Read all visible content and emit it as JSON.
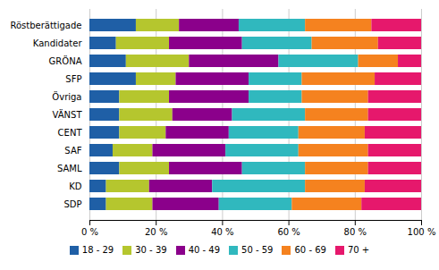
{
  "chart_data": {
    "type": "bar",
    "orientation": "horizontal",
    "stacked": true,
    "categories": [
      "Röstberättigade",
      "Kandidater",
      "GRÖNA",
      "SFP",
      "Övriga",
      "VÄNST",
      "CENT",
      "SAF",
      "SAML",
      "KD",
      "SDP"
    ],
    "series": [
      {
        "name": "18 - 29",
        "color": "#1f5fa6",
        "values": [
          14,
          8,
          11,
          14,
          9,
          9,
          9,
          7,
          9,
          5,
          5
        ]
      },
      {
        "name": "30 - 39",
        "color": "#b5c62e",
        "values": [
          13,
          16,
          19,
          12,
          15,
          16,
          14,
          12,
          15,
          13,
          14
        ]
      },
      {
        "name": "40 - 49",
        "color": "#8B008B",
        "values": [
          18,
          22,
          27,
          22,
          24,
          18,
          19,
          22,
          22,
          19,
          20
        ]
      },
      {
        "name": "50 - 59",
        "color": "#30b8be",
        "values": [
          20,
          21,
          24,
          16,
          16,
          22,
          21,
          22,
          19,
          28,
          22
        ]
      },
      {
        "name": "60 - 69",
        "color": "#f5821f",
        "values": [
          20,
          20,
          12,
          22,
          20,
          19,
          20,
          21,
          19,
          18,
          21
        ]
      },
      {
        "name": "70 +",
        "color": "#e6186c",
        "values": [
          15,
          13,
          7,
          14,
          16,
          16,
          17,
          16,
          16,
          17,
          18
        ]
      }
    ],
    "xlim": [
      0,
      100
    ],
    "xticks": [
      {
        "value": 0,
        "label": "0 %"
      },
      {
        "value": 20,
        "label": "20 %"
      },
      {
        "value": 40,
        "label": "40 %"
      },
      {
        "value": 60,
        "label": "60 %"
      },
      {
        "value": 80,
        "label": "80 %"
      },
      {
        "value": 100,
        "label": "100 %"
      }
    ],
    "grid": true,
    "legend": "bottom"
  }
}
